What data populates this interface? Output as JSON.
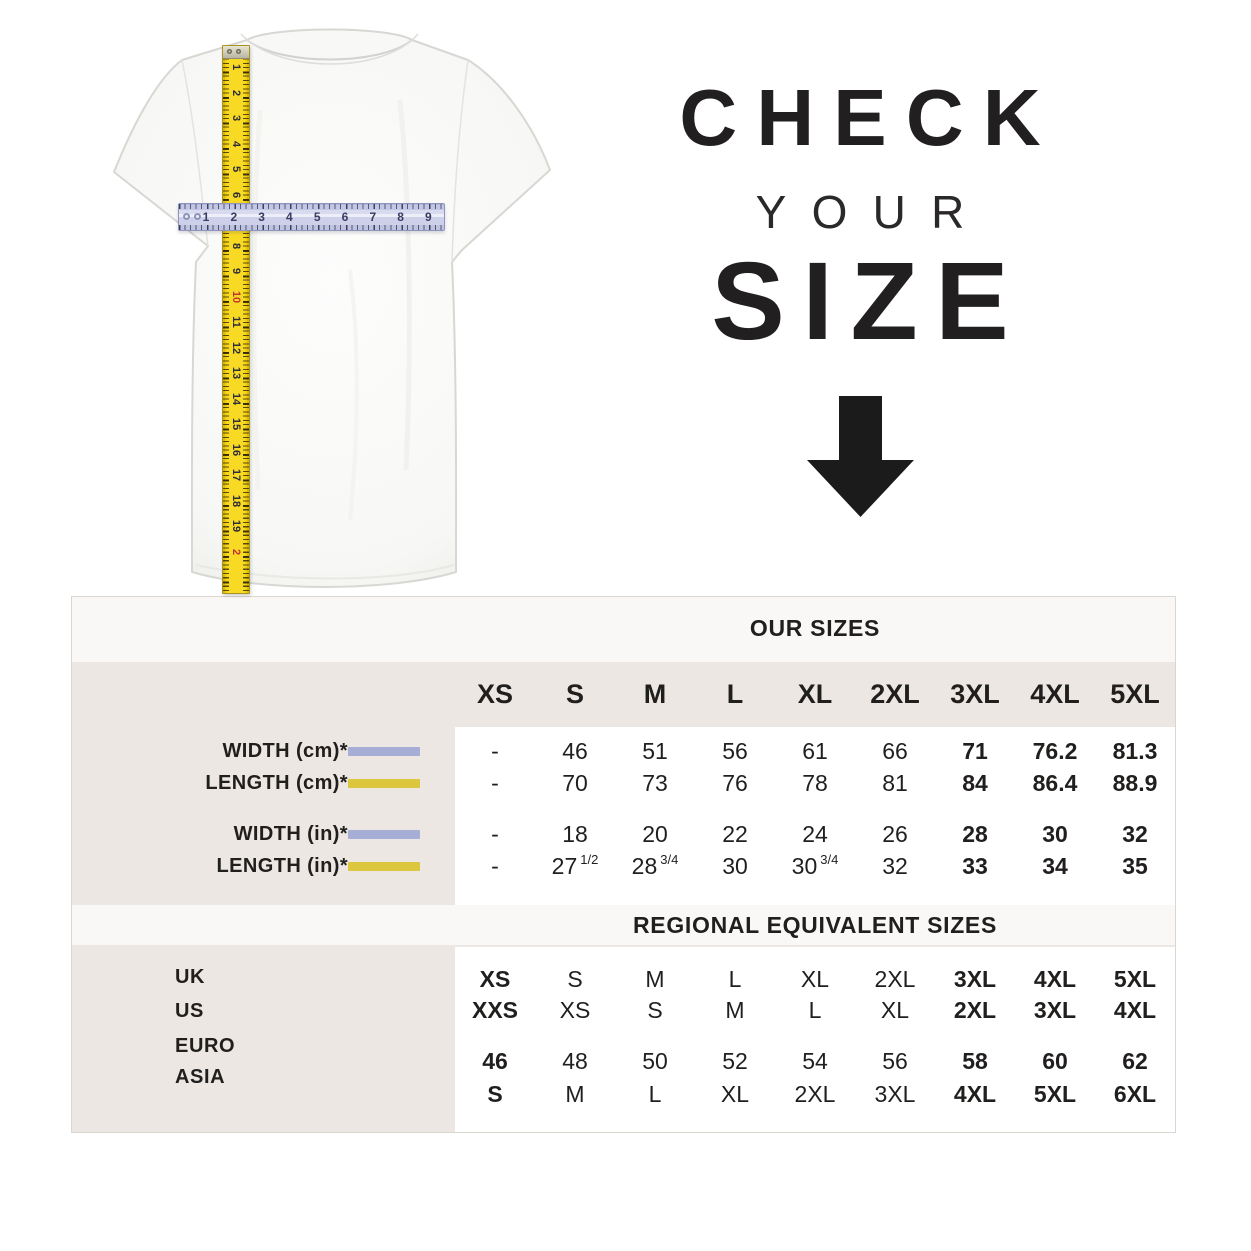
{
  "headline": {
    "word1": "CHECK",
    "word2": "YOUR",
    "word3": "SIZE",
    "arrow_color": "#1b1b1b"
  },
  "figure": {
    "vertical_tape": {
      "numbers": [
        "1",
        "2",
        "3",
        "4",
        "5",
        "6",
        "7",
        "8",
        "9",
        "10",
        "11",
        "12",
        "13",
        "14",
        "15",
        "16",
        "17",
        "18",
        "19"
      ],
      "partial_number": "2",
      "red_numbers": [
        "10"
      ],
      "tape_color": "#f8da24"
    },
    "horizontal_ruler": {
      "numbers": [
        "1",
        "2",
        "3",
        "4",
        "5",
        "6",
        "7",
        "8",
        "9"
      ],
      "ruler_color": "#c9cce7"
    }
  },
  "legend_colors": {
    "width_bar": "#a6aed6",
    "length_bar": "#dcc63e"
  },
  "chart_data": [
    {
      "type": "table",
      "title": "OUR SIZES",
      "columns": [
        "XS",
        "S",
        "M",
        "L",
        "XL",
        "2XL",
        "3XL",
        "4XL",
        "5XL"
      ],
      "rows": [
        {
          "label": "WIDTH (cm)*",
          "bar": "width",
          "values": [
            "-",
            "46",
            "51",
            "56",
            "61",
            "66",
            "71",
            "76.2",
            "81.3"
          ]
        },
        {
          "label": "LENGTH (cm)*",
          "bar": "length",
          "values": [
            "-",
            "70",
            "73",
            "76",
            "78",
            "81",
            "84",
            "86.4",
            "88.9"
          ]
        },
        {
          "label": "WIDTH (in)*",
          "bar": "width",
          "values": [
            "-",
            "18",
            "20",
            "22",
            "24",
            "26",
            "28",
            "30",
            "32"
          ]
        },
        {
          "label": "LENGTH (in)*",
          "bar": "length",
          "values": [
            "-",
            "27 1/2",
            "28 3/4",
            "30",
            "30 3/4",
            "32",
            "33",
            "34",
            "35"
          ]
        }
      ],
      "bold_value_columns": [
        6,
        7,
        8
      ]
    },
    {
      "type": "table",
      "title": "REGIONAL EQUIVALENT SIZES",
      "rows": [
        {
          "label": "UK",
          "values": [
            "XS",
            "S",
            "M",
            "L",
            "XL",
            "2XL",
            "3XL",
            "4XL",
            "5XL"
          ]
        },
        {
          "label": "US",
          "values": [
            "XXS",
            "XS",
            "S",
            "M",
            "L",
            "XL",
            "2XL",
            "3XL",
            "4XL"
          ]
        },
        {
          "label": "EURO",
          "values": [
            "46",
            "48",
            "50",
            "52",
            "54",
            "56",
            "58",
            "60",
            "62"
          ]
        },
        {
          "label": "ASIA",
          "values": [
            "S",
            "M",
            "L",
            "XL",
            "2XL",
            "3XL",
            "4XL",
            "5XL",
            "6XL"
          ]
        }
      ],
      "bold_value_columns": [
        0,
        6,
        7,
        8
      ]
    }
  ]
}
